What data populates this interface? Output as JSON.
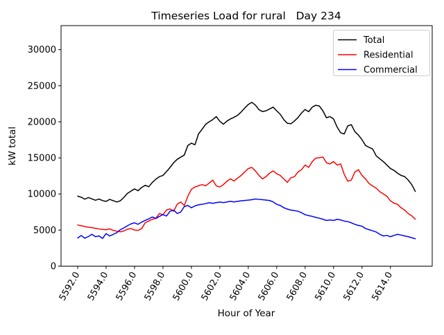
{
  "chart_data": {
    "type": "line",
    "title": "Timeseries Load for rural   Day 234",
    "xlabel": "Hour of Year",
    "ylabel": "kW total",
    "x_start": 5592.0,
    "x_step": 0.25,
    "xlim": [
      5590.83,
      5616.94
    ],
    "ylim": [
      0,
      33330
    ],
    "grid": false,
    "xticks": {
      "values": [
        5592,
        5594,
        5596,
        5598,
        5600,
        5602,
        5604,
        5606,
        5608,
        5610,
        5612,
        5614
      ],
      "labels": [
        "5592.0",
        "5594.0",
        "5596.0",
        "5598.0",
        "5600.0",
        "5602.0",
        "5604.0",
        "5606.0",
        "5608.0",
        "5610.0",
        "5612.0",
        "5614.0"
      ]
    },
    "yticks": {
      "values": [
        0,
        5000,
        10000,
        15000,
        20000,
        25000,
        30000
      ],
      "labels": [
        "0",
        "5000",
        "10000",
        "15000",
        "20000",
        "25000",
        "30000"
      ]
    },
    "legend": {
      "position": "upper right"
    },
    "series": [
      {
        "name": "Total",
        "color": "#000000",
        "values": [
          9700,
          9550,
          9280,
          9500,
          9320,
          9130,
          9300,
          9080,
          8970,
          9250,
          9070,
          8890,
          9060,
          9520,
          10080,
          10400,
          10700,
          10450,
          10900,
          11200,
          11000,
          11600,
          12050,
          12400,
          12570,
          13100,
          13680,
          14320,
          14800,
          15100,
          15400,
          16720,
          17040,
          16820,
          18320,
          18960,
          19650,
          20000,
          20300,
          20720,
          20080,
          19670,
          20100,
          20400,
          20630,
          20900,
          21360,
          21900,
          22400,
          22700,
          22320,
          21680,
          21420,
          21520,
          21780,
          22030,
          21520,
          21040,
          20300,
          19790,
          19730,
          20110,
          20590,
          21230,
          21710,
          21400,
          22030,
          22290,
          22190,
          21520,
          20560,
          20720,
          20400,
          19280,
          18480,
          18320,
          19440,
          19600,
          18640,
          18160,
          17520,
          16720,
          16460,
          16240,
          15280,
          14870,
          14490,
          14010,
          13530,
          13270,
          12890,
          12570,
          12410,
          11930,
          11300,
          10350
        ]
      },
      {
        "name": "Residential",
        "color": "#ff0000",
        "values": [
          5700,
          5600,
          5480,
          5400,
          5350,
          5230,
          5150,
          5100,
          5050,
          5170,
          4950,
          4850,
          4760,
          4880,
          5120,
          5210,
          5000,
          4950,
          5210,
          6005,
          6264,
          6485,
          6648,
          7291,
          7128,
          7771,
          7924,
          7608,
          8567,
          8884,
          8404,
          9690,
          10650,
          10970,
          11130,
          11300,
          11130,
          11500,
          11925,
          11130,
          10966,
          11300,
          11765,
          12091,
          11800,
          12200,
          12568,
          13048,
          13526,
          13681,
          13203,
          12568,
          12091,
          12400,
          12885,
          13203,
          12800,
          12568,
          12091,
          11611,
          12244,
          12405,
          13048,
          13364,
          14006,
          13681,
          14487,
          14967,
          15024,
          15120,
          14324,
          14161,
          14487,
          14006,
          14161,
          12725,
          11765,
          11925,
          13048,
          13364,
          12568,
          12091,
          11447,
          11100,
          10803,
          10323,
          10007,
          9690,
          9047,
          8730,
          8567,
          8087,
          7771,
          7291,
          6965,
          6500
        ]
      },
      {
        "name": "Commercial",
        "color": "#0000ff",
        "values": [
          3900,
          4250,
          3870,
          4100,
          4413,
          4087,
          4183,
          3837,
          4509,
          4183,
          4400,
          4634,
          5046,
          5300,
          5600,
          5852,
          6005,
          5800,
          6100,
          6331,
          6552,
          6811,
          6600,
          6900,
          7128,
          6950,
          7608,
          7771,
          7291,
          7500,
          8250,
          8404,
          8087,
          8346,
          8500,
          8567,
          8663,
          8788,
          8700,
          8800,
          8884,
          8800,
          8900,
          8980,
          8900,
          8980,
          9047,
          9100,
          9150,
          9210,
          9306,
          9250,
          9210,
          9150,
          9100,
          8900,
          8567,
          8404,
          8100,
          7900,
          7771,
          7700,
          7608,
          7400,
          7128,
          7000,
          6900,
          6750,
          6648,
          6500,
          6331,
          6400,
          6331,
          6485,
          6400,
          6250,
          6168,
          6005,
          5785,
          5650,
          5526,
          5209,
          5046,
          4900,
          4730,
          4413,
          4183,
          4250,
          4087,
          4250,
          4413,
          4300,
          4183,
          4087,
          3933,
          3800
        ]
      }
    ]
  }
}
